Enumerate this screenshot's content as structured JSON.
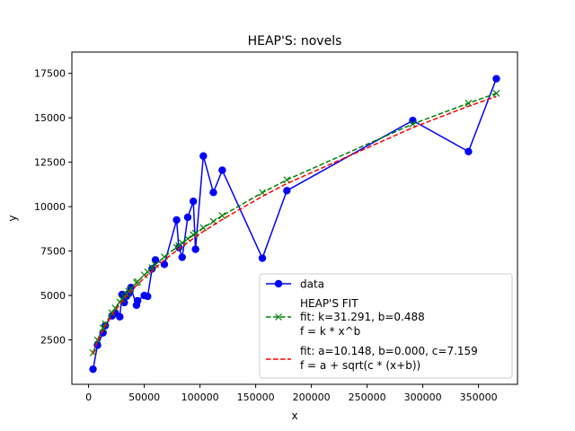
{
  "chart_data": {
    "type": "line",
    "title": "HEAP'S: novels",
    "xlabel": "x",
    "ylabel": "y",
    "xlim": [
      -15000,
      385000
    ],
    "ylim": [
      0,
      18700
    ],
    "grid": false,
    "legend_position": "lower-right",
    "x_ticks": [
      0,
      50000,
      100000,
      150000,
      200000,
      250000,
      300000,
      350000
    ],
    "x_tick_labels": [
      "0",
      "50000",
      "100000",
      "150000",
      "200000",
      "250000",
      "300000",
      "350000"
    ],
    "y_ticks": [
      2500,
      5000,
      7500,
      10000,
      12500,
      15000,
      17500
    ],
    "y_tick_labels": [
      "2500",
      "5000",
      "7500",
      "10000",
      "12500",
      "15000",
      "17500"
    ],
    "colors": {
      "data": "#0000ff",
      "heaps_fit": "#008000",
      "sqrt_fit": "#ff0000"
    },
    "series": [
      {
        "name": "data",
        "style": "solid-line-circle-markers",
        "x": [
          4000,
          8000,
          13000,
          15000,
          21000,
          24000,
          28000,
          30000,
          32000,
          34000,
          36000,
          38000,
          43000,
          44000,
          50000,
          53000,
          57000,
          60000,
          68000,
          79000,
          81000,
          84000,
          89000,
          94000,
          96000,
          103000,
          112000,
          120000,
          156000,
          178000,
          291000,
          341000,
          366000
        ],
        "y": [
          850,
          2200,
          2900,
          3300,
          3850,
          4000,
          3800,
          5050,
          4600,
          4950,
          5100,
          5450,
          4450,
          4700,
          5000,
          4950,
          6500,
          7000,
          6750,
          9250,
          7700,
          7150,
          9400,
          10300,
          7600,
          12850,
          10800,
          12050,
          7100,
          10900,
          14850,
          13100,
          17200
        ]
      },
      {
        "name": "fit: k=31.291, b=0.488\nf = k * x^b",
        "style": "dashed-line-x-markers",
        "params": {
          "k": 31.291,
          "b": 0.488
        },
        "x": [
          4000,
          8000,
          13000,
          15000,
          21000,
          24000,
          28000,
          30000,
          32000,
          34000,
          36000,
          38000,
          43000,
          44000,
          50000,
          53000,
          57000,
          60000,
          68000,
          79000,
          81000,
          84000,
          89000,
          94000,
          96000,
          103000,
          112000,
          120000,
          156000,
          178000,
          291000,
          341000,
          366000
        ],
        "y": [
          1780,
          2500,
          3170,
          3410,
          4020,
          4290,
          4630,
          4790,
          4940,
          5090,
          5240,
          5380,
          5720,
          5780,
          6160,
          6330,
          6570,
          6740,
          7170,
          7720,
          7810,
          7960,
          8190,
          8420,
          8500,
          8810,
          9170,
          9490,
          10790,
          11510,
          14650,
          15820,
          16380
        ]
      },
      {
        "name": "fit: a=10.148, b=0.000, c=7.159\nf = a + sqrt(c * (x+b))",
        "style": "dashed-line",
        "params": {
          "a": 10.148,
          "b": 0.0,
          "c": 7.159
        },
        "x": [
          4000,
          8000,
          13000,
          15000,
          21000,
          24000,
          28000,
          30000,
          32000,
          34000,
          36000,
          38000,
          43000,
          44000,
          50000,
          53000,
          57000,
          60000,
          68000,
          79000,
          81000,
          84000,
          89000,
          94000,
          96000,
          103000,
          112000,
          120000,
          156000,
          178000,
          291000,
          341000,
          366000
        ],
        "y": [
          1700,
          2400,
          3060,
          3290,
          3890,
          4160,
          4490,
          4650,
          4800,
          4940,
          5090,
          5230,
          5560,
          5620,
          5990,
          6170,
          6400,
          6560,
          6990,
          7530,
          7620,
          7760,
          7990,
          8210,
          8300,
          8600,
          8960,
          9280,
          10580,
          11300,
          14450,
          15650,
          16200
        ]
      }
    ],
    "legend": {
      "title": "HEAP'S FIT",
      "entries": [
        "data",
        "fit: k=31.291, b=0.488",
        "f = k * x^b",
        "fit: a=10.148, b=0.000, c=7.159",
        "f = a + sqrt(c * (x+b))"
      ]
    }
  }
}
